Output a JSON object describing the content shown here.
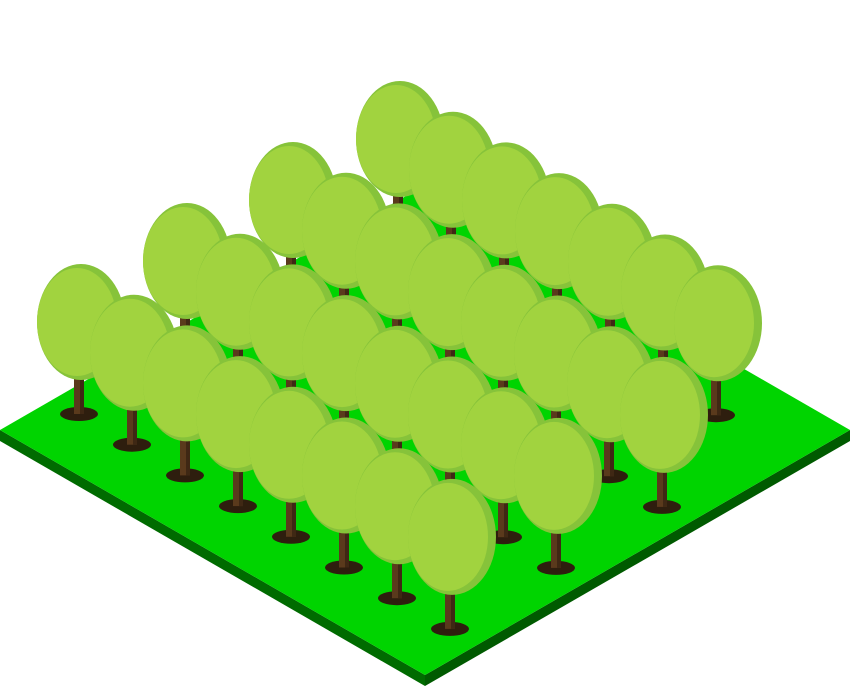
{
  "scene": {
    "subject": "isometric-forest-tile",
    "grid_rows": 8,
    "grid_cols": 8,
    "tree_count": 36
  },
  "colors": {
    "background": "#ffffff",
    "ground_top": "#00d400",
    "ground_side_left": "#006b00",
    "ground_side_right": "#005a00",
    "ground_edge": "#00a600",
    "canopy": "#a1d33f",
    "canopy_outline": "#86c33a",
    "canopy_highlight": "#acd94a",
    "trunk": "#5a3a1c",
    "trunk_dark": "#3f2814",
    "shadow": "#2e1e0e"
  },
  "icons": {
    "tree": "deciduous-tree-icon",
    "ground": "grass-tile"
  }
}
